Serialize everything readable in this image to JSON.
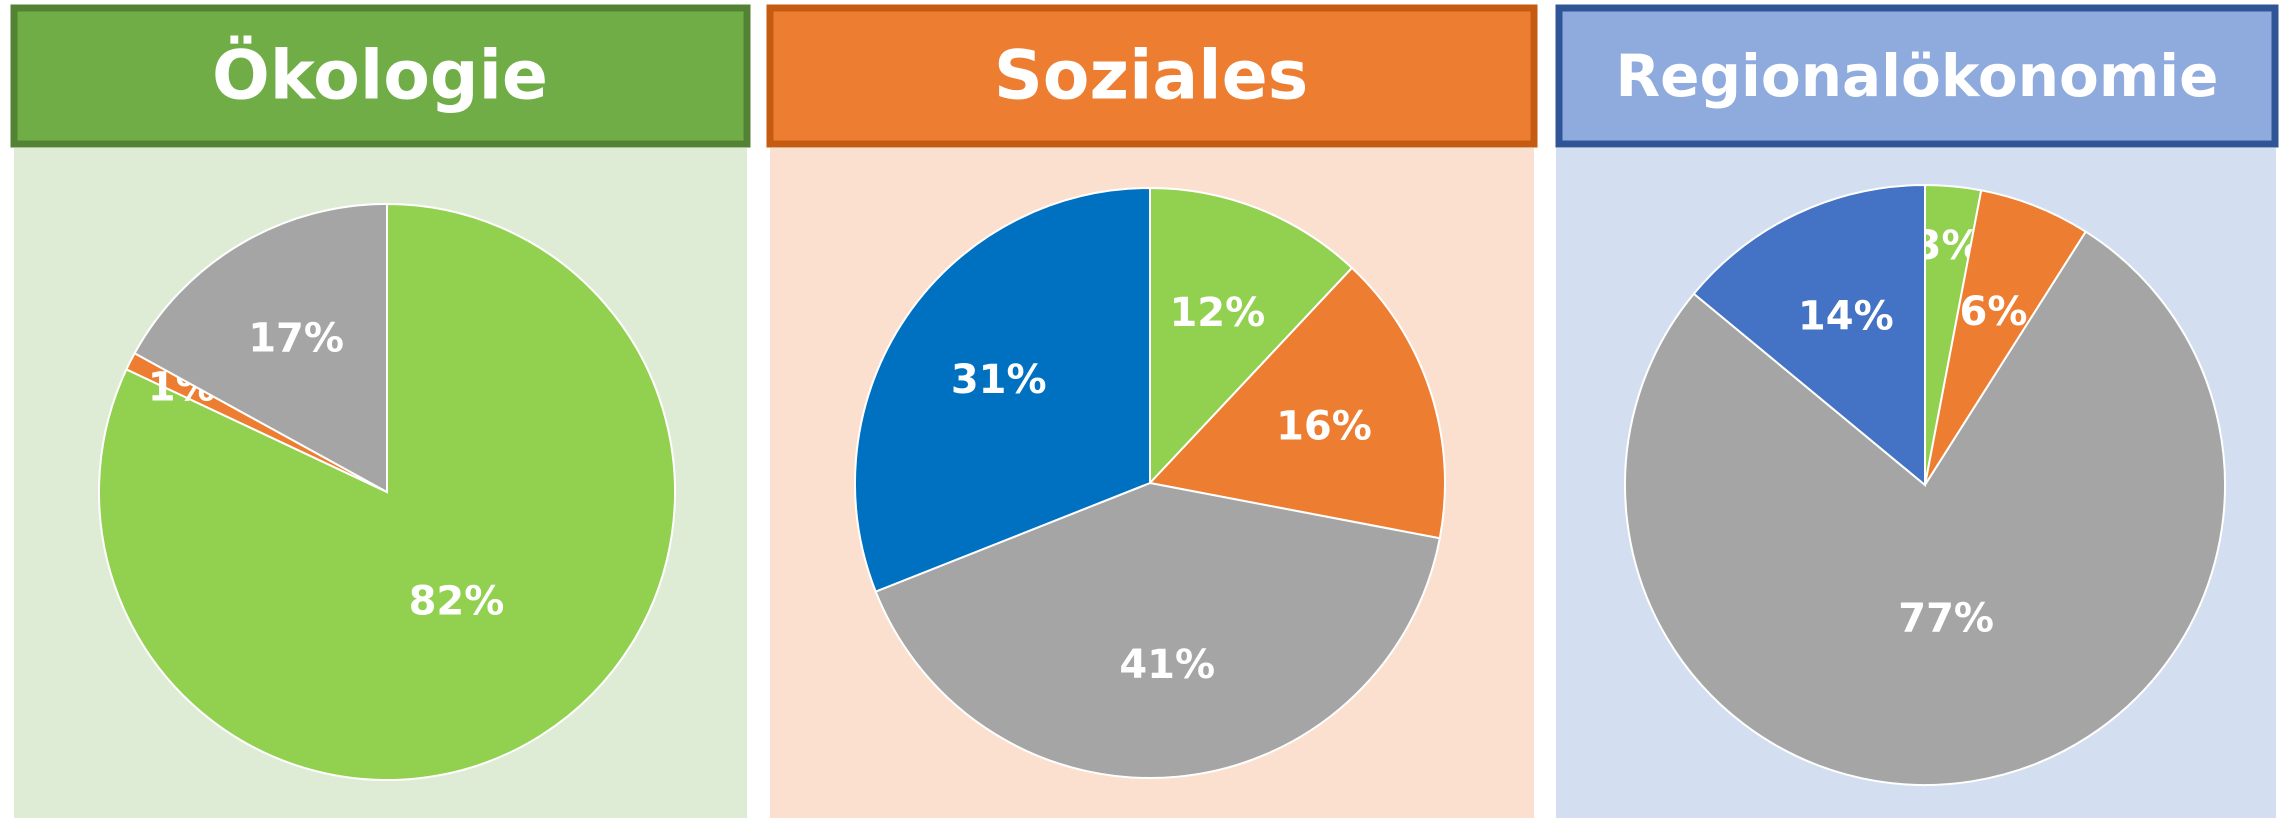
{
  "chart_data": [
    {
      "type": "pie",
      "title": "Ökologie",
      "values": [
        82,
        1,
        17
      ],
      "value_labels": [
        "82%",
        "1%",
        "17%"
      ],
      "colors": [
        "#92d050",
        "#ed7d31",
        "#a5a5a5"
      ]
    },
    {
      "type": "pie",
      "title": "Soziales",
      "values": [
        12,
        16,
        41,
        31
      ],
      "value_labels": [
        "12%",
        "16%",
        "41%",
        "31%"
      ],
      "colors": [
        "#92d050",
        "#ed7d31",
        "#a5a5a5",
        "#0070c0"
      ]
    },
    {
      "type": "pie",
      "title": "Regionalökonomie",
      "values": [
        3,
        6,
        77,
        14
      ],
      "value_labels": [
        "3%",
        "6%",
        "77%",
        "14%"
      ],
      "colors": [
        "#92d050",
        "#ed7d31",
        "#a5a5a5",
        "#4472c4"
      ]
    }
  ]
}
